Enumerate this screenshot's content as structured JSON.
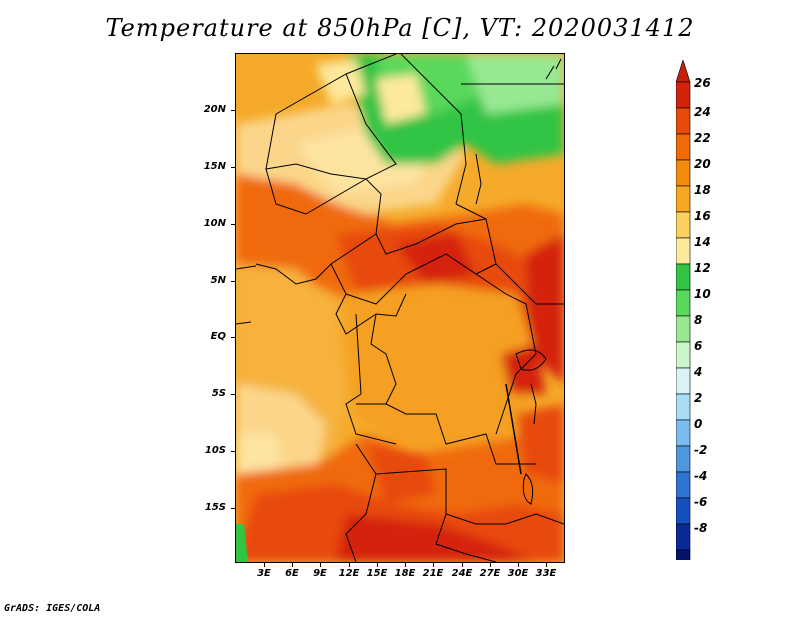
{
  "title": "Temperature at 850hPa [C], VT: 2020031412",
  "footer": "GrADS: IGES/COLA",
  "map": {
    "lat_labels": [
      "20N",
      "15N",
      "10N",
      "5N",
      "EQ",
      "5S",
      "10S",
      "15S"
    ],
    "lon_labels": [
      "3E",
      "6E",
      "9E",
      "12E",
      "15E",
      "18E",
      "21E",
      "24E",
      "27E",
      "30E",
      "33E"
    ]
  },
  "colorbar": {
    "labels": [
      "26",
      "24",
      "22",
      "20",
      "18",
      "16",
      "14",
      "12",
      "10",
      "8",
      "6",
      "4",
      "2",
      "0",
      "-2",
      "-4",
      "-6",
      "-8"
    ],
    "colors": [
      "#a01e0a",
      "#d4230a",
      "#e84a08",
      "#f06a08",
      "#f38a0c",
      "#f6a823",
      "#fbd060",
      "#fde99c",
      "#33c444",
      "#5ad85c",
      "#98e893",
      "#ccf5cc",
      "#d8f2f8",
      "#a8dcf5",
      "#7abcee",
      "#4f98e0",
      "#2f73d4",
      "#1650c0",
      "#0a2a9a",
      "#06136a",
      "#d8d8f5"
    ],
    "over_color": "#c8200a",
    "under_color": "#d8d8f5"
  }
}
